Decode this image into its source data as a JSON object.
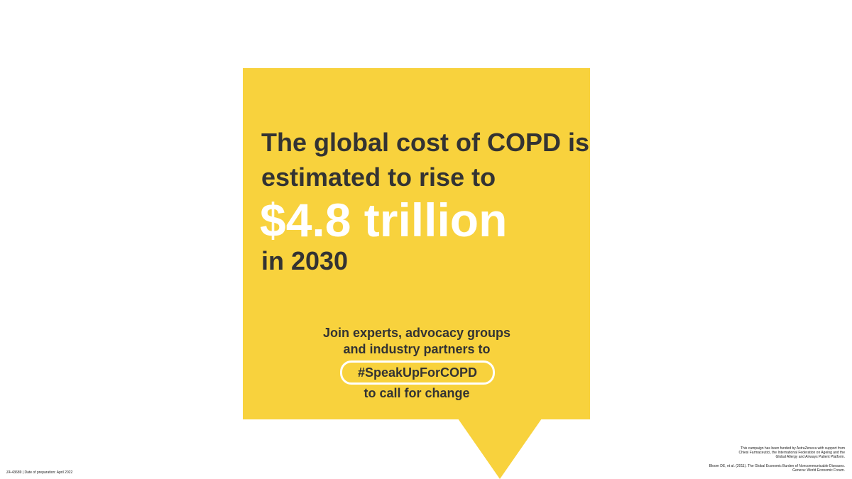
{
  "headline": {
    "line1": "The global cost of COPD is",
    "line2": "estimated to rise to"
  },
  "figure": "$4.8 trillion",
  "year_text": "in 2030",
  "cta": {
    "line1": "Join experts, advocacy groups",
    "line2": "and industry partners to",
    "hashtag": "#SpeakUpForCOPD",
    "line3": "to call for change"
  },
  "footer": {
    "code": "Z4-43689 | Date of preparation: April 2022",
    "funding_line1": "This campaign has been funded by AstraZeneca with support from",
    "funding_line2": "Chiesi Farmaceutici, the International Federation on Ageing and the",
    "funding_line3": "Global Allergy and Airways Patient Platform.",
    "reference_line1": "Bloom DE, et al. (2011). The Global Economic Burden of Noncommunicable Diseases.",
    "reference_line2": "Geneva: World Economic Forum."
  },
  "colors": {
    "bubble": "#f8d23d",
    "text_dark": "#333333",
    "text_light": "#ffffff"
  }
}
